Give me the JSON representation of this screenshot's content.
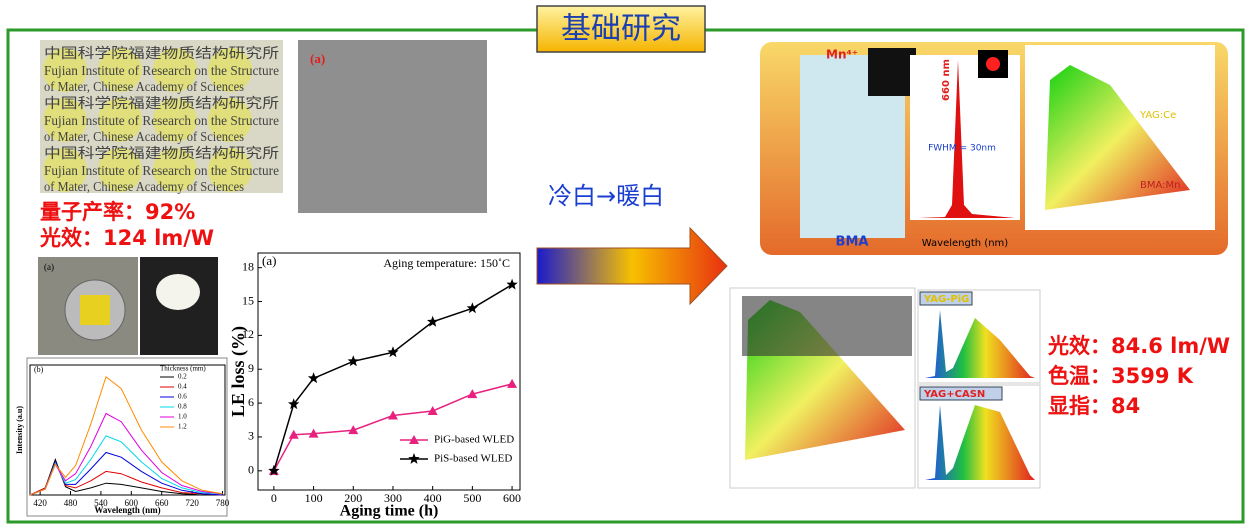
{
  "title": "基础研究",
  "left_stats": [
    "量子产率：92%",
    "光效：124 lm/W"
  ],
  "transition": "冷白→暖白",
  "right_stats": [
    "光效：84.6 lm/W",
    "色温：3599 K",
    "显指：84"
  ],
  "figures": {
    "photo_lines": [
      "中国科学院福建物质结构研究所",
      "Fujian Institute of Research on the Structure",
      "of Mater, Chinese Academy of Sciences"
    ],
    "sem_label": "(a)",
    "lamp_label": "(a)",
    "bma_label": "BMA",
    "mn_label": "Mn⁴⁺",
    "peak_label": "660 nm",
    "fwhm_label": "FWHM = 30nm",
    "bma_xlabel": "Wavelength (nm)",
    "yag_label": "YAG:Ce",
    "bmamn_label": "BMA:Mn",
    "pig_label": "YAG-PiG",
    "casn_label": "YAG+CASN"
  },
  "chart_data": [
    {
      "type": "line",
      "panel_label": "(a)",
      "annotation": "Aging temperature: 150˚C",
      "x_label": "Aging time (h)",
      "y_label": "LE loss (%)",
      "x": [
        0,
        50,
        100,
        200,
        300,
        400,
        500,
        600
      ],
      "series": [
        {
          "name": "PiG-based WLED",
          "color": "#e8217f",
          "marker": "triangle",
          "values": [
            0,
            3.2,
            3.3,
            3.6,
            4.9,
            5.3,
            6.8,
            7.7
          ]
        },
        {
          "name": "PiS-based WLED",
          "color": "#000000",
          "marker": "star",
          "values": [
            0,
            5.9,
            8.2,
            9.7,
            10.5,
            13.2,
            14.4,
            16.5
          ]
        }
      ],
      "xlim": [
        -40,
        620
      ],
      "xticks": [
        0,
        100,
        200,
        300,
        400,
        500,
        600
      ],
      "ylim": [
        -1.7,
        19.3
      ],
      "yticks": [
        0,
        3,
        6,
        9,
        12,
        15,
        18
      ],
      "legend": "lower right"
    },
    {
      "type": "line",
      "panel_label": "(b)",
      "x_label": "Wavelength (nm)",
      "y_label": "Intensity (a.u)",
      "legend_title": "Thickness (mm)",
      "x": [
        400,
        430,
        450,
        470,
        490,
        520,
        550,
        580,
        620,
        660,
        700,
        740,
        780
      ],
      "series": [
        {
          "name": "0.2",
          "color": "#000000",
          "values": [
            0,
            0.06,
            0.3,
            0.07,
            0.03,
            0.06,
            0.1,
            0.09,
            0.06,
            0.03,
            0.01,
            0,
            0
          ]
        },
        {
          "name": "0.4",
          "color": "#e00000",
          "values": [
            0,
            0.06,
            0.28,
            0.08,
            0.06,
            0.12,
            0.2,
            0.18,
            0.11,
            0.06,
            0.02,
            0.01,
            0
          ]
        },
        {
          "name": "0.6",
          "color": "#0000e0",
          "values": [
            0,
            0.05,
            0.28,
            0.09,
            0.09,
            0.22,
            0.36,
            0.32,
            0.2,
            0.1,
            0.04,
            0.01,
            0
          ]
        },
        {
          "name": "0.8",
          "color": "#00d8e8",
          "values": [
            0,
            0.05,
            0.27,
            0.1,
            0.13,
            0.3,
            0.5,
            0.45,
            0.28,
            0.14,
            0.06,
            0.02,
            0.01
          ]
        },
        {
          "name": "1.0",
          "color": "#e000e0",
          "values": [
            0,
            0.05,
            0.26,
            0.12,
            0.18,
            0.41,
            0.69,
            0.62,
            0.38,
            0.19,
            0.08,
            0.03,
            0.01
          ]
        },
        {
          "name": "1.2",
          "color": "#ff8c00",
          "values": [
            0,
            0.05,
            0.26,
            0.15,
            0.25,
            0.6,
            1.0,
            0.9,
            0.55,
            0.28,
            0.12,
            0.04,
            0.01
          ]
        }
      ],
      "xlim": [
        400,
        785
      ],
      "xticks": [
        420,
        480,
        540,
        600,
        660,
        720,
        780
      ],
      "ylim": [
        0,
        1.1
      ],
      "legend": "upper right"
    }
  ]
}
